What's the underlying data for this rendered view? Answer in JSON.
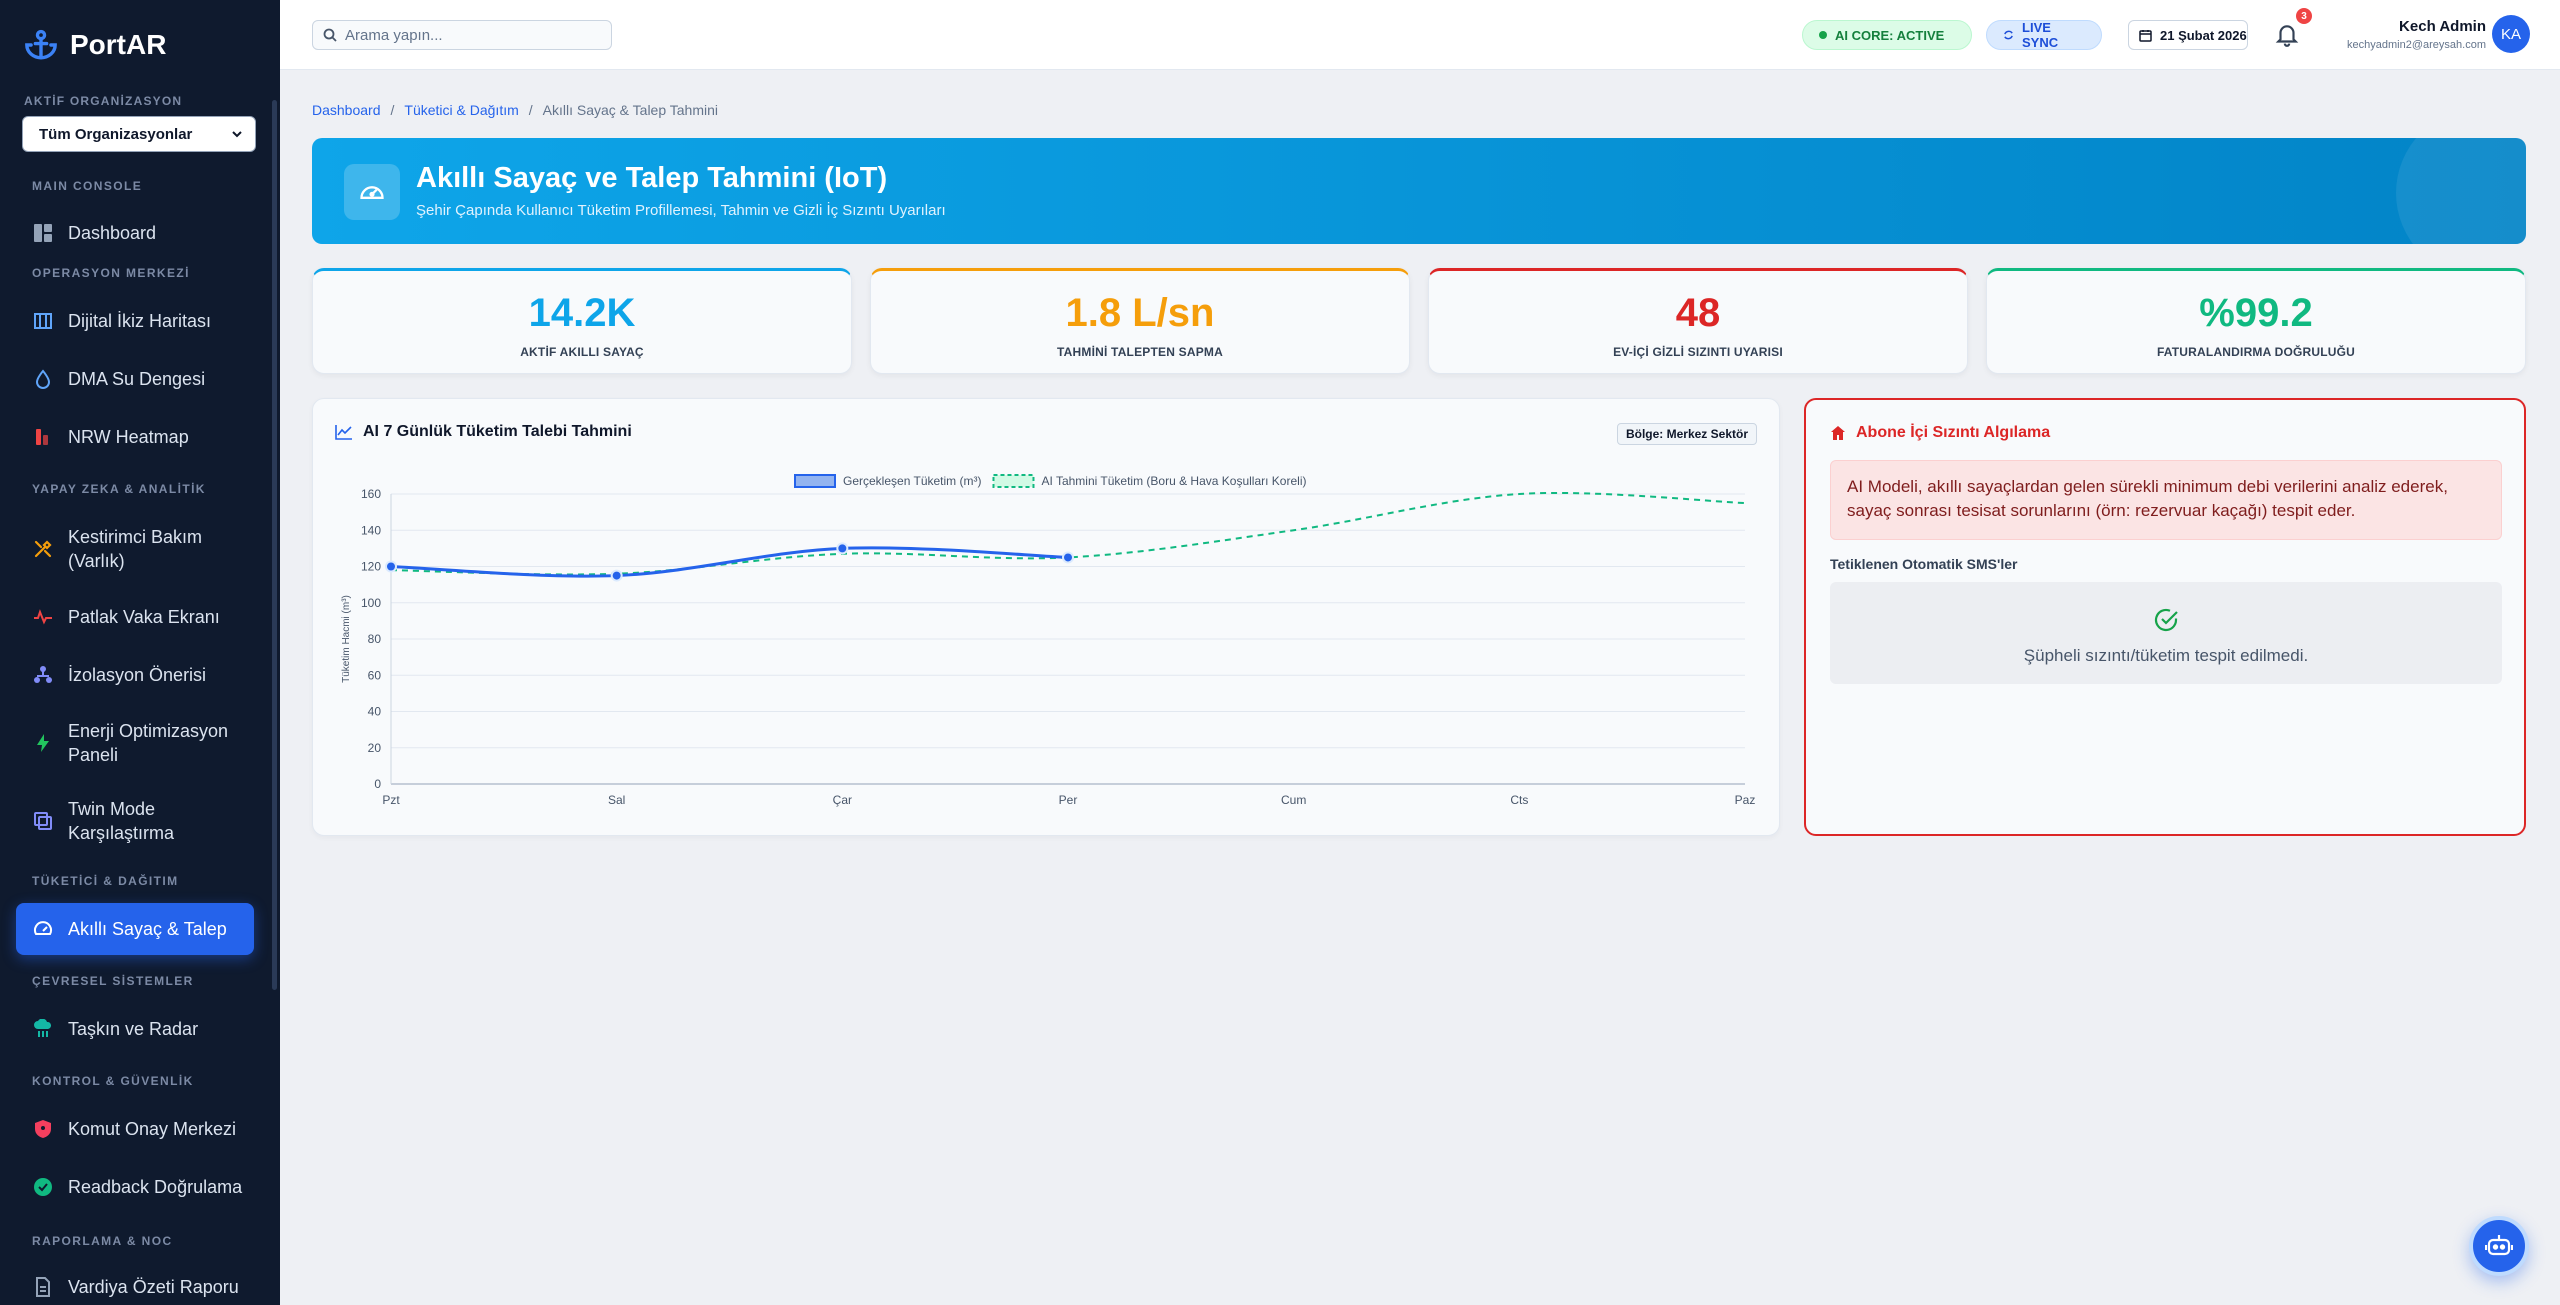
{
  "app": {
    "name": "PortAR"
  },
  "sidebar": {
    "org_label": "AKTİF ORGANİZASYON",
    "org_selected": "Tüm Organizasyonlar",
    "sections": {
      "main_console": "MAIN CONSOLE",
      "operations": "OPERASYON MERKEZİ",
      "ai": "YAPAY ZEKA & ANALİTİK",
      "consumer": "TÜKETİCİ & DAĞITIM",
      "environment": "ÇEVRESEL SİSTEMLER",
      "control": "KONTROL & GÜVENLİK",
      "reports": "RAPORLAMA & NOC"
    },
    "items": [
      {
        "label": "Dashboard",
        "icon": "dashboard-icon"
      },
      {
        "label": "Dijital İkiz Haritası",
        "icon": "map-icon"
      },
      {
        "label": "DMA Su Dengesi",
        "icon": "water-drop-icon"
      },
      {
        "label": "NRW Heatmap",
        "icon": "heatmap-icon"
      },
      {
        "label": "Kestirimci Bakım (Varlık)",
        "icon": "tools-icon"
      },
      {
        "label": "Patlak Vaka Ekranı",
        "icon": "pulse-icon"
      },
      {
        "label": "İzolasyon Önerisi",
        "icon": "network-icon"
      },
      {
        "label": "Enerji Optimizasyon Paneli",
        "icon": "bolt-icon"
      },
      {
        "label": "Twin Mode Karşılaştırma",
        "icon": "compare-icon"
      },
      {
        "label": "Akıllı Sayaç & Talep",
        "icon": "gauge-icon"
      },
      {
        "label": "Taşkın ve Radar",
        "icon": "cloud-rain-icon"
      },
      {
        "label": "Komut Onay Merkezi",
        "icon": "shield-icon"
      },
      {
        "label": "Readback Doğrulama",
        "icon": "check-circle-icon"
      },
      {
        "label": "Vardiya Özeti Raporu",
        "icon": "report-icon"
      }
    ],
    "active_item": "Akıllı Sayaç & Talep"
  },
  "topbar": {
    "search_placeholder": "Arama yapın...",
    "ai_core": "AI CORE: ACTIVE",
    "live_sync": "LIVE SYNC",
    "date": "21 Şubat 2026",
    "notification_count": "3",
    "user_name": "Kech Admin",
    "user_email": "kechyadmin2@areysah.com",
    "avatar_initials": "KA"
  },
  "breadcrumb": [
    "Dashboard",
    "Tüketici & Dağıtım",
    "Akıllı Sayaç & Talep Tahmini"
  ],
  "hero": {
    "title": "Akıllı Sayaç ve Talep Tahmini (IoT)",
    "subtitle": "Şehir Çapında Kullanıcı Tüketim Profillemesi, Tahmin ve Gizli İç Sızıntı Uyarıları"
  },
  "stats": [
    {
      "value": "14.2K",
      "label": "AKTİF AKILLI SAYAÇ",
      "color": "#0ea5e9"
    },
    {
      "value": "1.8 L/sn",
      "label": "TAHMİNİ TALEPTEN SAPMA",
      "color": "#f59e0b"
    },
    {
      "value": "48",
      "label": "EV-İÇİ GİZLİ SIZINTI UYARISI",
      "color": "#dc2626"
    },
    {
      "value": "%99.2",
      "label": "FATURALANDIRMA DOĞRULUĞU",
      "color": "#10b981"
    }
  ],
  "chart_panel": {
    "title": "AI 7 Günlük Tüketim Talebi Tahmini",
    "region": "Bölge: Merkez Sektör"
  },
  "chart_data": {
    "type": "line",
    "categories": [
      "Pzt",
      "Sal",
      "Çar",
      "Per",
      "Cum",
      "Cts",
      "Paz"
    ],
    "ylabel": "Tüketim Hacmi (m³)",
    "ylim": [
      0,
      160
    ],
    "yticks": [
      0,
      20,
      40,
      60,
      80,
      100,
      120,
      140,
      160
    ],
    "grid": true,
    "legend_position": "top-center",
    "series": [
      {
        "name": "Gerçekleşen Tüketim (m³)",
        "values": [
          120,
          115,
          130,
          125,
          null,
          null,
          null
        ],
        "color": "#2563eb",
        "style": "solid"
      },
      {
        "name": "AI Tahmini Tüketim (Boru & Hava Koşulları Koreli)",
        "values": [
          118,
          116,
          127,
          125,
          140,
          160,
          155
        ],
        "color": "#10b981",
        "style": "dashed"
      }
    ]
  },
  "leak_panel": {
    "title": "Abone İçi Sızıntı Algılama",
    "description": "AI Modeli, akıllı sayaçlardan gelen sürekli minimum debi verilerini analiz ederek, sayaç sonrası tesisat sorunlarını (örn: rezervuar kaçağı) tespit eder.",
    "sms_label": "Tetiklenen Otomatik SMS'ler",
    "sms_empty": "Şüpheli sızıntı/tüketim tespit edilmedi."
  }
}
